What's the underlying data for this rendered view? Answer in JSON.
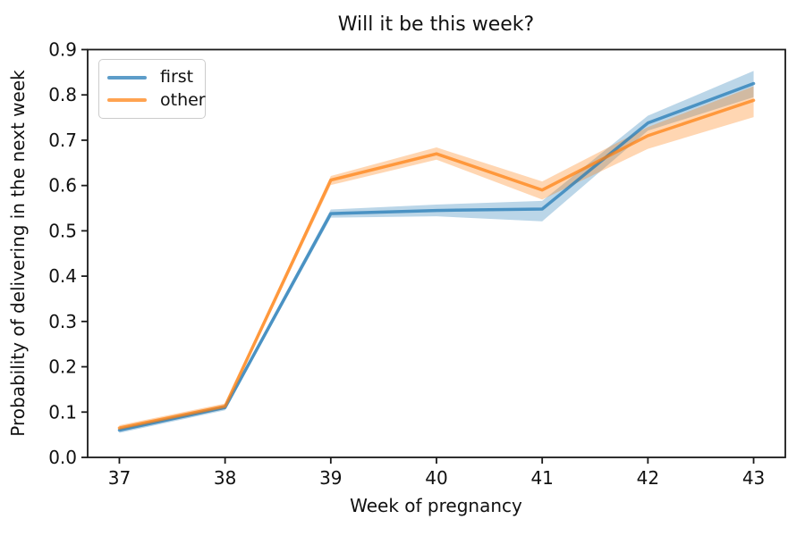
{
  "figure": {
    "title": "Will it be this week?",
    "xlabel": "Week of pregnancy",
    "ylabel": "Probability of delivering in the next week"
  },
  "legend": {
    "items": [
      {
        "label": "first",
        "color": "#1f77b4"
      },
      {
        "label": "other",
        "color": "#ff7f0e"
      }
    ],
    "position": "upper left"
  },
  "chart_data": {
    "type": "line",
    "title": "Will it be this week?",
    "xlabel": "Week of pregnancy",
    "ylabel": "Probability of delivering in the next week",
    "x": [
      37,
      38,
      39,
      40,
      41,
      42,
      43
    ],
    "xtick_labels": [
      "37",
      "38",
      "39",
      "40",
      "41",
      "42",
      "43"
    ],
    "yticks": [
      0.0,
      0.1,
      0.2,
      0.3,
      0.4,
      0.5,
      0.6,
      0.7,
      0.8,
      0.9
    ],
    "ytick_labels": [
      "0.0",
      "0.1",
      "0.2",
      "0.3",
      "0.4",
      "0.5",
      "0.6",
      "0.7",
      "0.8",
      "0.9"
    ],
    "xlim": [
      36.7,
      43.3
    ],
    "ylim": [
      0.0,
      0.9
    ],
    "grid": false,
    "legend_position": "upper left",
    "series": [
      {
        "name": "first",
        "color": "#1f77b4",
        "line_alpha": 0.72,
        "band_alpha": 0.3,
        "values": [
          0.06,
          0.11,
          0.538,
          0.545,
          0.548,
          0.738,
          0.825
        ],
        "band_low": [
          0.054,
          0.104,
          0.529,
          0.532,
          0.521,
          0.721,
          0.795
        ],
        "band_high": [
          0.066,
          0.116,
          0.547,
          0.558,
          0.566,
          0.754,
          0.853
        ]
      },
      {
        "name": "other",
        "color": "#ff7f0e",
        "line_alpha": 0.72,
        "band_alpha": 0.32,
        "values": [
          0.065,
          0.113,
          0.612,
          0.67,
          0.59,
          0.71,
          0.788
        ],
        "band_low": [
          0.059,
          0.107,
          0.601,
          0.657,
          0.569,
          0.681,
          0.751
        ],
        "band_high": [
          0.071,
          0.119,
          0.621,
          0.684,
          0.609,
          0.729,
          0.819
        ]
      }
    ]
  }
}
